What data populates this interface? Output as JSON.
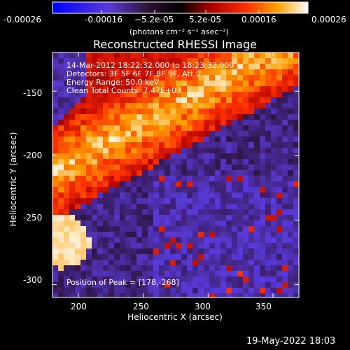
{
  "chart_data": {
    "type": "heatmap",
    "title": "Reconstructed RHESSI Image",
    "xlabel": "Heliocentric X (arcsec)",
    "ylabel": "Heliocentric Y (arcsec)",
    "xlim": [
      180,
      370
    ],
    "ylim": [
      -310,
      -120
    ],
    "x_ticks": [
      200,
      250,
      300,
      350
    ],
    "y_ticks": [
      -150,
      -200,
      -250,
      -300
    ],
    "colorbar": {
      "range": [
        -0.00026,
        0.00026
      ],
      "tick_labels": [
        "-0.00026",
        "-0.00016",
        "−5.2e-05",
        "5.2e-05",
        "0.00016",
        "0.00026"
      ],
      "tick_values": [
        -0.00026,
        -0.00016,
        -5.2e-05,
        5.2e-05,
        0.00016,
        0.00026
      ],
      "unit_label": "(photons cm⁻² s⁻¹ asec⁻²)"
    },
    "annotations": [
      "14-Mar-2012 18:22:32.000 to 18:23:32.000",
      "Detectors: 3F 5F 6F 7F 8F 9F, Att 0",
      "Energy Range: 50.0 keV",
      "Clean    Total Counts: 7.47E+03"
    ],
    "peak_label": "Position of Peak = [178,-268]",
    "peak_position": [
      178,
      -268
    ]
  },
  "footer": {
    "timestamp": "19-May-2022 18:03"
  },
  "colors": {
    "background": "#000000",
    "text": "#ffffff",
    "colormap_low": "#0000ff",
    "colormap_mid": "#ff0000",
    "colormap_high": "#ffffff"
  }
}
